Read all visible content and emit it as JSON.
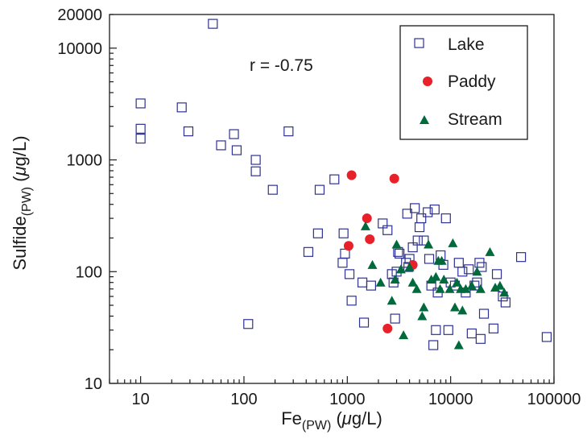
{
  "chart_data": {
    "type": "scatter",
    "title": "",
    "xlabel": {
      "main": "Fe",
      "sub": "(PW)",
      "unit_pre": " (",
      "unit_mu": "μ",
      "unit_post": "g/L)"
    },
    "ylabel": {
      "main": "Sulfide",
      "sub": "(PW)",
      "unit_pre": " (",
      "unit_mu": "μ",
      "unit_post": "g/L)"
    },
    "x_scale": "log",
    "y_scale": "log",
    "xlim": [
      5,
      100000
    ],
    "ylim": [
      10,
      20000
    ],
    "x_ticks": [
      {
        "value": 10,
        "label": "10"
      },
      {
        "value": 100,
        "label": "100"
      },
      {
        "value": 1000,
        "label": "1000"
      },
      {
        "value": 10000,
        "label": "10000"
      },
      {
        "value": 100000,
        "label": "100000"
      }
    ],
    "y_ticks": [
      {
        "value": 10,
        "label": "10"
      },
      {
        "value": 100,
        "label": "100"
      },
      {
        "value": 1000,
        "label": "1000"
      },
      {
        "value": 10000,
        "label": "10000"
      },
      {
        "value": 20000,
        "label": "20000"
      }
    ],
    "grid": false,
    "legend_position": "top-right",
    "annotation": "r = -0.75",
    "series": [
      {
        "name": "Lake",
        "marker": "square-open",
        "color": "#2e3192",
        "points": [
          [
            10,
            3200
          ],
          [
            10,
            1900
          ],
          [
            10,
            1550
          ],
          [
            25,
            2950
          ],
          [
            29,
            1800
          ],
          [
            50,
            16500
          ],
          [
            60,
            1350
          ],
          [
            80,
            1700
          ],
          [
            85,
            1220
          ],
          [
            130,
            1000
          ],
          [
            130,
            790
          ],
          [
            190,
            540
          ],
          [
            270,
            1800
          ],
          [
            110,
            34
          ],
          [
            420,
            150
          ],
          [
            520,
            220
          ],
          [
            540,
            540
          ],
          [
            750,
            670
          ],
          [
            900,
            120
          ],
          [
            920,
            220
          ],
          [
            950,
            145
          ],
          [
            1050,
            95
          ],
          [
            1100,
            55
          ],
          [
            1400,
            80
          ],
          [
            1450,
            35
          ],
          [
            1700,
            75
          ],
          [
            2200,
            270
          ],
          [
            2450,
            235
          ],
          [
            2700,
            95
          ],
          [
            2800,
            80
          ],
          [
            2900,
            38
          ],
          [
            3000,
            100
          ],
          [
            3100,
            150
          ],
          [
            3200,
            145
          ],
          [
            3700,
            120
          ],
          [
            3800,
            330
          ],
          [
            3900,
            110
          ],
          [
            4000,
            130
          ],
          [
            4300,
            165
          ],
          [
            4500,
            370
          ],
          [
            4800,
            190
          ],
          [
            5000,
            250
          ],
          [
            5200,
            300
          ],
          [
            5500,
            190
          ],
          [
            6000,
            340
          ],
          [
            6200,
            130
          ],
          [
            6500,
            75
          ],
          [
            6800,
            22
          ],
          [
            7000,
            360
          ],
          [
            7200,
            30
          ],
          [
            7500,
            65
          ],
          [
            8000,
            140
          ],
          [
            8500,
            115
          ],
          [
            9000,
            300
          ],
          [
            9500,
            30
          ],
          [
            10000,
            80
          ],
          [
            11000,
            75
          ],
          [
            12000,
            120
          ],
          [
            13000,
            100
          ],
          [
            14000,
            65
          ],
          [
            15000,
            105
          ],
          [
            16000,
            28
          ],
          [
            17000,
            75
          ],
          [
            18000,
            80
          ],
          [
            19000,
            120
          ],
          [
            19500,
            25
          ],
          [
            20000,
            110
          ],
          [
            21000,
            42
          ],
          [
            26000,
            31
          ],
          [
            28000,
            95
          ],
          [
            32000,
            60
          ],
          [
            34000,
            53
          ],
          [
            48000,
            135
          ],
          [
            85000,
            26
          ]
        ]
      },
      {
        "name": "Paddy",
        "marker": "circle-filled",
        "color": "#e8202a",
        "points": [
          [
            1100,
            730
          ],
          [
            2850,
            680
          ],
          [
            1550,
            300
          ],
          [
            1650,
            195
          ],
          [
            1030,
            170
          ],
          [
            4300,
            115
          ],
          [
            2450,
            31
          ]
        ]
      },
      {
        "name": "Stream",
        "marker": "triangle-filled",
        "color": "#006a3c",
        "points": [
          [
            1500,
            255
          ],
          [
            1750,
            115
          ],
          [
            2100,
            80
          ],
          [
            2700,
            55
          ],
          [
            2900,
            85
          ],
          [
            3000,
            175
          ],
          [
            3300,
            105
          ],
          [
            3500,
            27
          ],
          [
            4000,
            110
          ],
          [
            4300,
            80
          ],
          [
            4700,
            70
          ],
          [
            5300,
            40
          ],
          [
            5500,
            48
          ],
          [
            6100,
            175
          ],
          [
            6500,
            85
          ],
          [
            7200,
            90
          ],
          [
            7600,
            125
          ],
          [
            7900,
            70
          ],
          [
            8200,
            125
          ],
          [
            8600,
            85
          ],
          [
            9800,
            70
          ],
          [
            10500,
            180
          ],
          [
            11000,
            48
          ],
          [
            11500,
            80
          ],
          [
            12000,
            22
          ],
          [
            12500,
            70
          ],
          [
            13000,
            45
          ],
          [
            14000,
            70
          ],
          [
            16000,
            75
          ],
          [
            18000,
            100
          ],
          [
            19500,
            70
          ],
          [
            24000,
            150
          ],
          [
            27000,
            72
          ],
          [
            30000,
            75
          ],
          [
            33000,
            65
          ]
        ]
      }
    ]
  }
}
